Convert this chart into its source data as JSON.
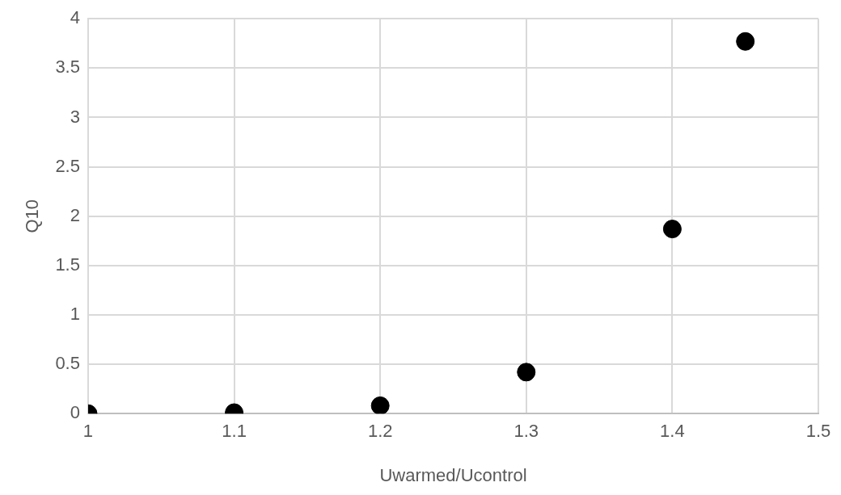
{
  "chart_data": {
    "type": "scatter",
    "xlabel": "Uwarmed/Ucontrol",
    "ylabel": "Q10",
    "x": [
      1,
      1.1,
      1.2,
      1.3,
      1.4,
      1.45
    ],
    "series": [
      {
        "color": "#000000",
        "values": [
          0,
          0.01,
          0.08,
          0.42,
          1.87,
          3.77
        ]
      }
    ],
    "xlim": [
      1,
      1.5
    ],
    "xticks": [
      1,
      1.1,
      1.2,
      1.3,
      1.4,
      1.5
    ],
    "ylim": [
      0,
      4
    ],
    "yticks": [
      0,
      0.5,
      1,
      1.5,
      2,
      2.5,
      3,
      3.5,
      4
    ],
    "grid": true,
    "legend": false,
    "marker": "circle"
  }
}
